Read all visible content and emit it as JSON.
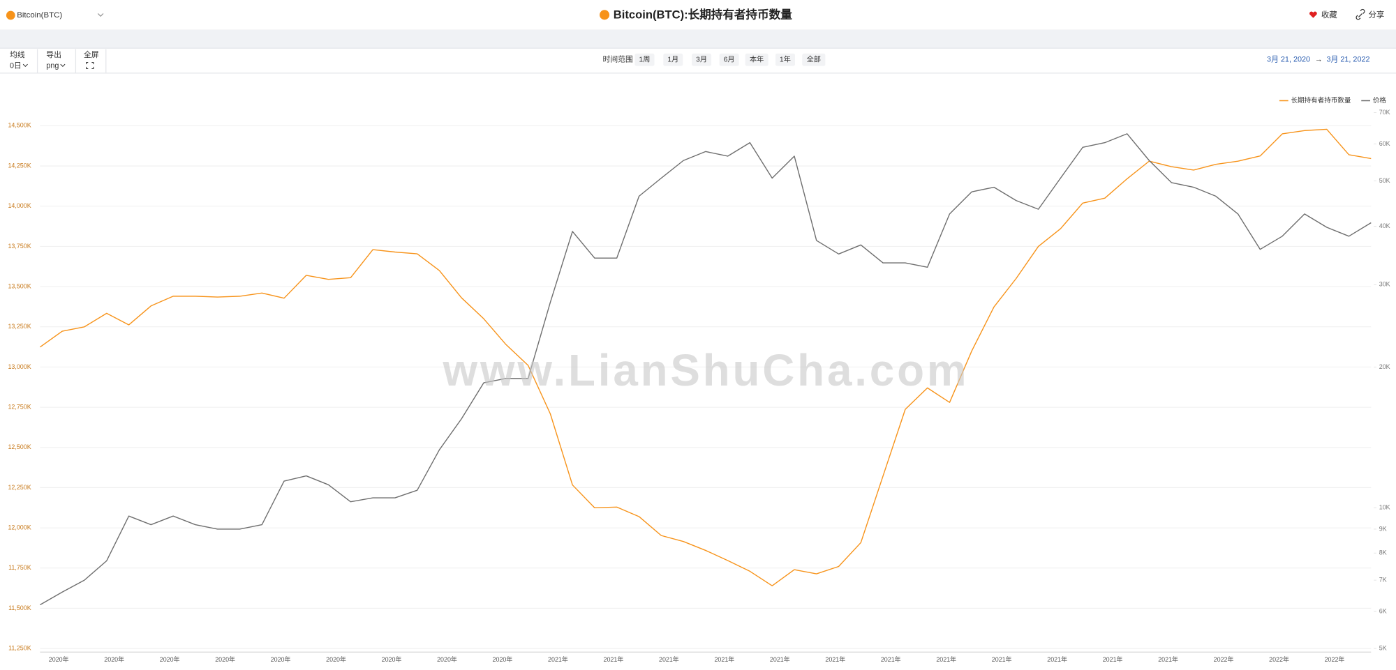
{
  "header": {
    "asset": "Bitcoin(BTC)",
    "title": "Bitcoin(BTC):长期持有者持币数量",
    "favorite": "收藏",
    "share": "分享"
  },
  "toolbar": {
    "ma_label": "均线",
    "ma_value": "0日",
    "export_label": "导出",
    "export_value": "png",
    "fullscreen": "全屏",
    "range_label": "时间范围",
    "ranges": [
      "1周",
      "1月",
      "3月",
      "6月",
      "本年",
      "1年",
      "全部"
    ],
    "start": "3月 21, 2020",
    "arrow": "→",
    "end": "3月 21, 2022"
  },
  "watermark": "www.LianShuCha.com",
  "chart_data": {
    "type": "line",
    "x_labels": [
      "2020年",
      "2020年",
      "2020年",
      "2020年",
      "2020年",
      "2020年",
      "2020年",
      "2020年",
      "2020年",
      "2021年",
      "2021年",
      "2021年",
      "2021年",
      "2021年",
      "2021年",
      "2021年",
      "2021年",
      "2021年",
      "2021年",
      "2021年",
      "2021年",
      "2022年",
      "2022年",
      "2022年"
    ],
    "series": [
      {
        "name": "长期持有者持币数量",
        "color": "#f7931a",
        "axis": "y",
        "values": [
          13124,
          13223,
          13250,
          13334,
          13262,
          13380,
          13440,
          13440,
          13435,
          13440,
          13460,
          13428,
          13570,
          13545,
          13555,
          13730,
          13715,
          13704,
          13600,
          13430,
          13300,
          13140,
          13010,
          12709,
          12267,
          12125,
          12129,
          12070,
          11952,
          11915,
          11860,
          11797,
          11730,
          11640,
          11740,
          11714,
          11760,
          11908,
          12322,
          12737,
          12870,
          12780,
          13100,
          13373,
          13550,
          13750,
          13860,
          14019,
          14050,
          14170,
          14280,
          14246,
          14225,
          14260,
          14280,
          14312,
          14450,
          14470,
          14478,
          14320,
          14296
        ]
      },
      {
        "name": "价格",
        "color": "#6e6e6e",
        "axis": "y2",
        "values": [
          6.2,
          6.6,
          7.0,
          7.7,
          9.6,
          9.2,
          9.6,
          9.2,
          9.0,
          9.0,
          9.2,
          11.4,
          11.7,
          11.2,
          10.3,
          10.5,
          10.5,
          10.9,
          13.3,
          15.5,
          18.5,
          18.9,
          18.9,
          27.5,
          39.0,
          34.2,
          34.2,
          46.4,
          50.7,
          55.3,
          57.8,
          56.5,
          60.4,
          50.7,
          56.5,
          37.3,
          34.9,
          36.5,
          33.4,
          33.4,
          32.7,
          42.5,
          47.4,
          48.5,
          45.4,
          43.5,
          50.7,
          59.0,
          60.4,
          63.1,
          55.3,
          49.6,
          48.5,
          46.4,
          42.5,
          35.7,
          38.1,
          42.5,
          39.8,
          38.1,
          40.7
        ]
      }
    ],
    "ylim": [
      11250,
      14750
    ],
    "yticks": [
      {
        "value": 11250,
        "label": "11,250K"
      },
      {
        "value": 11500,
        "label": "11,500K"
      },
      {
        "value": 11750,
        "label": "11,750K"
      },
      {
        "value": 12000,
        "label": "12,000K"
      },
      {
        "value": 12250,
        "label": "12,250K"
      },
      {
        "value": 12500,
        "label": "12,500K"
      },
      {
        "value": 12750,
        "label": "12,750K"
      },
      {
        "value": 13000,
        "label": "13,000K"
      },
      {
        "value": 13250,
        "label": "13,250K"
      },
      {
        "value": 13500,
        "label": "13,500K"
      },
      {
        "value": 13750,
        "label": "13,750K"
      },
      {
        "value": 14000,
        "label": "14,000K"
      },
      {
        "value": 14250,
        "label": "14,250K"
      },
      {
        "value": 14500,
        "label": "14,500K"
      }
    ],
    "y2lim": [
      5,
      80
    ],
    "y2_log": true,
    "y2ticks": [
      {
        "value": 5,
        "label": "5K"
      },
      {
        "value": 6,
        "label": "6K"
      },
      {
        "value": 7,
        "label": "7K"
      },
      {
        "value": 8,
        "label": "8K"
      },
      {
        "value": 9,
        "label": "9K"
      },
      {
        "value": 10,
        "label": "10K"
      },
      {
        "value": 20,
        "label": "20K"
      },
      {
        "value": 30,
        "label": "30K"
      },
      {
        "value": 40,
        "label": "40K"
      },
      {
        "value": 50,
        "label": "50K"
      },
      {
        "value": 60,
        "label": "60K"
      },
      {
        "value": 70,
        "label": "70K"
      }
    ],
    "grid": true,
    "legend": "top-right",
    "ytick_color": "#c8791a",
    "y2tick_color": "#777"
  }
}
